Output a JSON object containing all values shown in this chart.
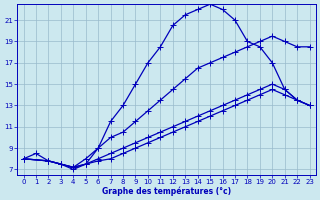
{
  "xlabel": "Graphe des températures (°c)",
  "xlim": [
    -0.5,
    23.5
  ],
  "ylim": [
    6.5,
    22.5
  ],
  "xticks": [
    0,
    1,
    2,
    3,
    4,
    5,
    6,
    7,
    8,
    9,
    10,
    11,
    12,
    13,
    14,
    15,
    16,
    17,
    18,
    19,
    20,
    21,
    22,
    23
  ],
  "yticks": [
    7,
    9,
    11,
    13,
    15,
    17,
    19,
    21
  ],
  "bg_color": "#cce8ef",
  "line_color": "#0000bb",
  "grid_color": "#99bbcc",
  "line1_x": [
    0,
    1,
    2,
    3,
    4,
    5,
    6,
    7,
    8,
    9,
    10,
    11,
    12,
    13,
    14,
    15,
    16,
    17,
    18,
    19,
    20,
    21,
    22,
    23
  ],
  "line1_y": [
    8.0,
    8.5,
    7.8,
    7.5,
    7.0,
    7.5,
    9.0,
    11.5,
    13.0,
    15.0,
    17.0,
    18.5,
    20.5,
    21.5,
    22.0,
    22.5,
    22.0,
    21.0,
    19.0,
    18.5,
    17.0,
    14.5,
    13.5,
    13.0
  ],
  "line2_x": [
    0,
    2,
    3,
    4,
    5,
    6,
    7,
    8,
    9,
    10,
    11,
    12,
    13,
    14,
    15,
    16,
    17,
    18,
    19,
    20,
    21,
    22,
    23
  ],
  "line2_y": [
    8.0,
    7.8,
    7.5,
    7.2,
    8.0,
    9.0,
    10.0,
    10.5,
    11.5,
    12.5,
    13.5,
    14.5,
    15.5,
    16.5,
    17.0,
    17.5,
    18.0,
    18.5,
    19.0,
    19.5,
    19.0,
    18.5,
    18.5
  ],
  "line3_x": [
    0,
    2,
    3,
    4,
    5,
    6,
    7,
    8,
    9,
    10,
    11,
    12,
    13,
    14,
    15,
    16,
    17,
    18,
    19,
    20,
    21,
    22,
    23
  ],
  "line3_y": [
    8.0,
    7.8,
    7.5,
    7.2,
    7.5,
    8.0,
    8.5,
    9.0,
    9.5,
    10.0,
    10.5,
    11.0,
    11.5,
    12.0,
    12.5,
    13.0,
    13.5,
    14.0,
    14.5,
    15.0,
    14.5,
    13.5,
    13.0
  ],
  "line4_x": [
    0,
    2,
    3,
    4,
    5,
    6,
    7,
    8,
    9,
    10,
    11,
    12,
    13,
    14,
    15,
    16,
    17,
    18,
    19,
    20,
    21,
    22,
    23
  ],
  "line4_y": [
    8.0,
    7.8,
    7.5,
    7.2,
    7.5,
    7.8,
    8.0,
    8.5,
    9.0,
    9.5,
    10.0,
    10.5,
    11.0,
    11.5,
    12.0,
    12.5,
    13.0,
    13.5,
    14.0,
    14.5,
    14.0,
    13.5,
    13.0
  ]
}
